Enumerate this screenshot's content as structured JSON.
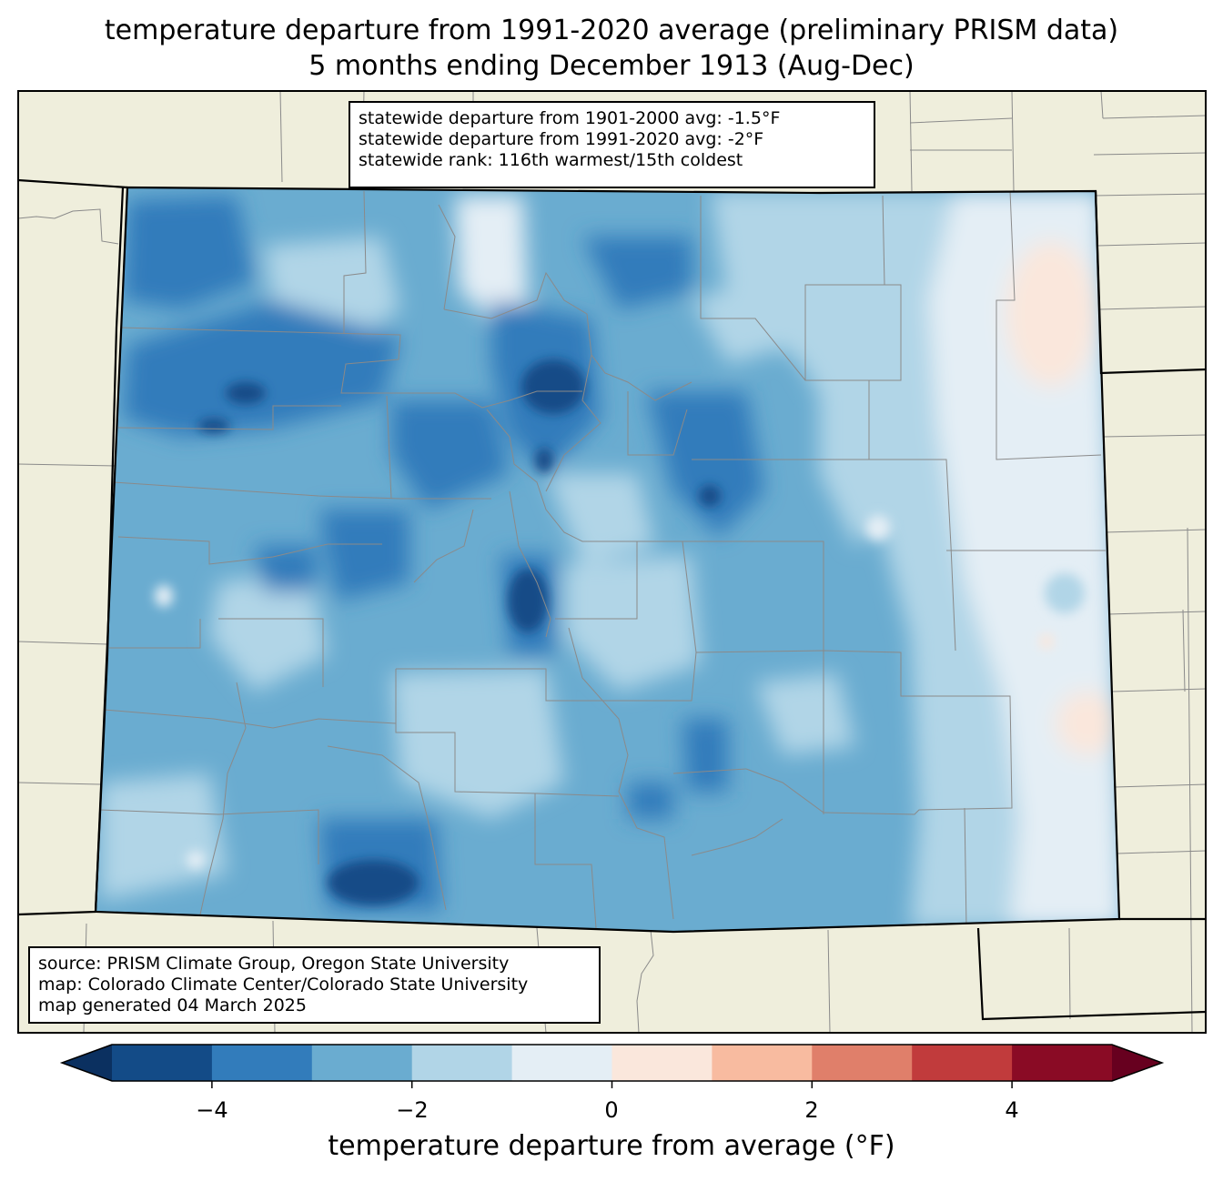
{
  "title": {
    "line1": "temperature departure from 1991-2020 average (preliminary PRISM data)",
    "line2": "5 months ending December 1913 (Aug-Dec)"
  },
  "stats_box": {
    "line1": "statewide departure from 1901-2000 avg: -1.5°F",
    "line2": "statewide departure from 1991-2020 avg: -2°F",
    "line3": "statewide rank: 116th warmest/15th coldest"
  },
  "credits_box": {
    "line1": "source: PRISM Climate Group, Oregon State University",
    "line2": "map: Colorado Climate Center/Colorado State University",
    "line3": "map generated 04 March 2025"
  },
  "colorbar": {
    "label": "temperature departure from average (°F)",
    "ticks": [
      "−4",
      "−2",
      "0",
      "2",
      "4"
    ],
    "bins": [
      {
        "from": -5,
        "to": -4,
        "color": "#134b87"
      },
      {
        "from": -4,
        "to": -3,
        "color": "#327cbb"
      },
      {
        "from": -3,
        "to": -2,
        "color": "#6aacd0"
      },
      {
        "from": -2,
        "to": -1,
        "color": "#b1d5e7"
      },
      {
        "from": -1,
        "to": 0,
        "color": "#e4eef5"
      },
      {
        "from": 0,
        "to": 1,
        "color": "#fae7dc"
      },
      {
        "from": 1,
        "to": 2,
        "color": "#f8bba0"
      },
      {
        "from": 2,
        "to": 3,
        "color": "#e07f6a"
      },
      {
        "from": 3,
        "to": 4,
        "color": "#c13b3c"
      },
      {
        "from": 4,
        "to": 5,
        "color": "#8a0b25"
      }
    ],
    "under_color": "#0b3060",
    "over_color": "#67001f"
  },
  "map": {
    "state": "Colorado",
    "land_color": "#efeedc",
    "statewide_departure_f": -2
  }
}
